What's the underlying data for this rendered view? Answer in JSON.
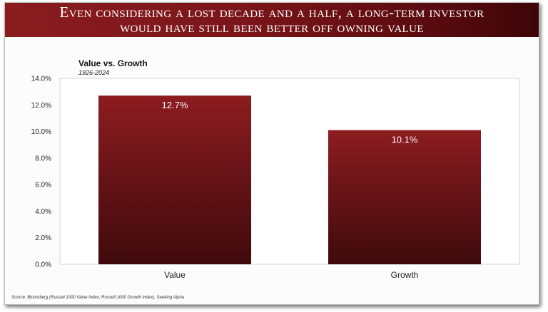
{
  "header": {
    "title_line1": "Even considering a lost decade and a half, a long-term investor",
    "title_line2": "would have still been better off owning value"
  },
  "source": "Source: Bloomberg (Russell 1000 Value Index; Russell 1000 Growth Index), Seeking Alpha",
  "chart_data": {
    "type": "bar",
    "title": "Value vs. Growth",
    "subtitle": "1926-2024",
    "categories": [
      "Value",
      "Growth"
    ],
    "values": [
      12.7,
      10.1
    ],
    "data_labels": [
      "12.7%",
      "10.1%"
    ],
    "ylim": [
      0,
      14
    ],
    "yticks": [
      "0.0%",
      "2.0%",
      "4.0%",
      "6.0%",
      "8.0%",
      "10.0%",
      "12.0%",
      "14.0%"
    ],
    "grid": false,
    "bar_color_top": "#8c1c20",
    "bar_color_bottom": "#3f0a0c"
  }
}
